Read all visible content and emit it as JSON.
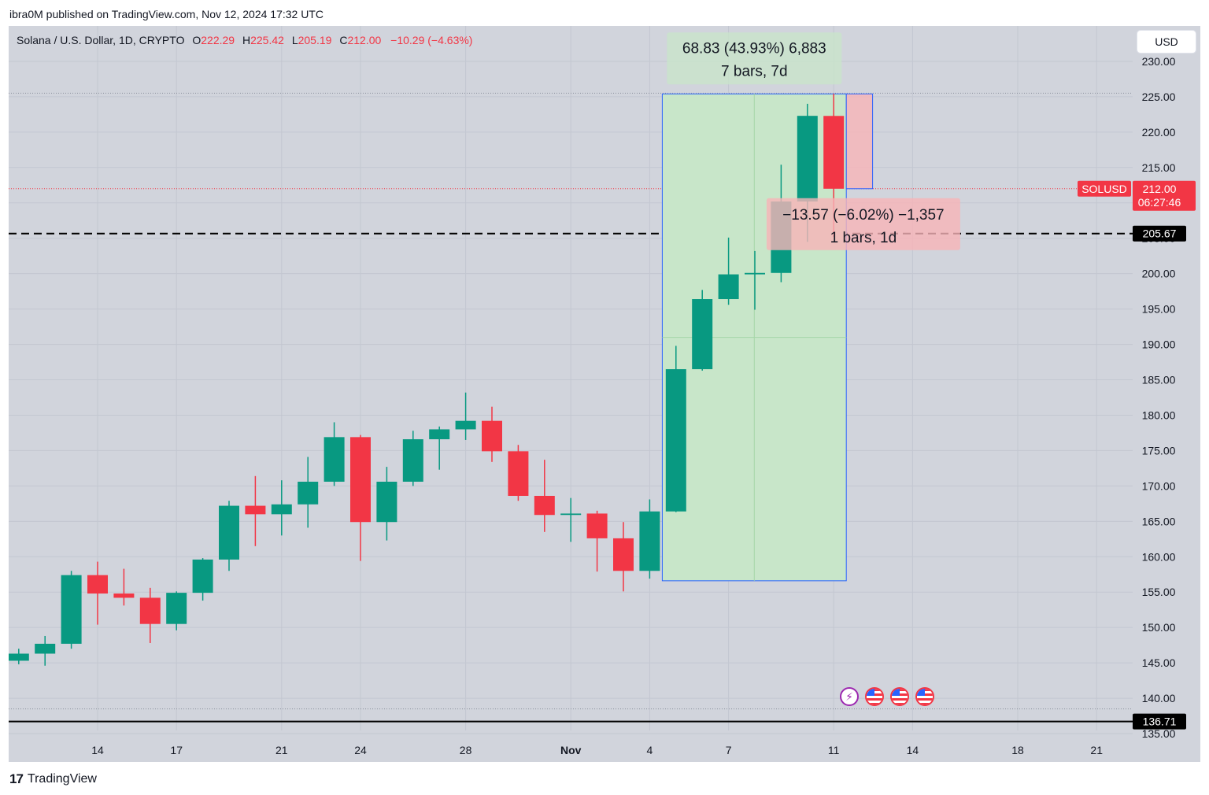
{
  "attribution": "ibra0M published on TradingView.com, Nov 12, 2024 17:32 UTC",
  "legend": {
    "symbol": "Solana / U.S. Dollar, 1D, CRYPTO",
    "o_label": "O",
    "o_value": "222.29",
    "h_label": "H",
    "h_value": "225.42",
    "l_label": "L",
    "l_value": "205.19",
    "c_label": "C",
    "c_value": "212.00",
    "change": "−10.29 (−4.63%)"
  },
  "currency_button": "USD",
  "footer": {
    "logo_glyph": "17",
    "brand": "TradingView"
  },
  "event_icons": [
    "lightning-icon",
    "us-flag-icon",
    "us-flag-icon",
    "us-flag-icon"
  ],
  "chart_data": {
    "type": "candlestick",
    "title": "Solana / U.S. Dollar, 1D, CRYPTO",
    "ylim": [
      131,
      235
    ],
    "y_ticks": [
      "230.00",
      "225.00",
      "220.00",
      "215.00",
      "210.00",
      "205.00",
      "200.00",
      "195.00",
      "190.00",
      "185.00",
      "180.00",
      "175.00",
      "170.00",
      "165.00",
      "160.00",
      "155.00",
      "150.00",
      "145.00",
      "140.00",
      "135.00"
    ],
    "x_ticks": [
      {
        "label": "14",
        "date": "2024-10-14"
      },
      {
        "label": "17",
        "date": "2024-10-17"
      },
      {
        "label": "21",
        "date": "2024-10-21"
      },
      {
        "label": "24",
        "date": "2024-10-24"
      },
      {
        "label": "28",
        "date": "2024-10-28"
      },
      {
        "label": "Nov",
        "date": "2024-11-01"
      },
      {
        "label": "4",
        "date": "2024-11-04"
      },
      {
        "label": "7",
        "date": "2024-11-07"
      },
      {
        "label": "11",
        "date": "2024-11-11"
      },
      {
        "label": "14",
        "date": "2024-11-14"
      },
      {
        "label": "18",
        "date": "2024-11-18"
      },
      {
        "label": "21",
        "date": "2024-11-21"
      }
    ],
    "candles": [
      {
        "date": "2024-10-10",
        "o": 138.8,
        "h": 146.3,
        "l": 138.4,
        "c": 145.3
      },
      {
        "date": "2024-10-11",
        "o": 145.3,
        "h": 147.0,
        "l": 144.8,
        "c": 146.3
      },
      {
        "date": "2024-10-12",
        "o": 146.3,
        "h": 148.8,
        "l": 144.6,
        "c": 147.7
      },
      {
        "date": "2024-10-13",
        "o": 147.7,
        "h": 158.0,
        "l": 147.0,
        "c": 157.4
      },
      {
        "date": "2024-10-14",
        "o": 157.4,
        "h": 159.3,
        "l": 150.4,
        "c": 154.8
      },
      {
        "date": "2024-10-15",
        "o": 154.8,
        "h": 158.3,
        "l": 153.1,
        "c": 154.2
      },
      {
        "date": "2024-10-16",
        "o": 154.2,
        "h": 155.6,
        "l": 147.8,
        "c": 150.5
      },
      {
        "date": "2024-10-17",
        "o": 150.5,
        "h": 155.1,
        "l": 149.6,
        "c": 154.9
      },
      {
        "date": "2024-10-18",
        "o": 154.9,
        "h": 159.8,
        "l": 153.8,
        "c": 159.6
      },
      {
        "date": "2024-10-19",
        "o": 159.6,
        "h": 167.9,
        "l": 158.0,
        "c": 167.2
      },
      {
        "date": "2024-10-20",
        "o": 167.2,
        "h": 171.4,
        "l": 161.5,
        "c": 166.0
      },
      {
        "date": "2024-10-21",
        "o": 166.0,
        "h": 170.8,
        "l": 163.0,
        "c": 167.4
      },
      {
        "date": "2024-10-22",
        "o": 167.4,
        "h": 174.1,
        "l": 164.1,
        "c": 170.6
      },
      {
        "date": "2024-10-23",
        "o": 170.6,
        "h": 179.0,
        "l": 170.0,
        "c": 176.9
      },
      {
        "date": "2024-10-24",
        "o": 176.9,
        "h": 177.2,
        "l": 159.4,
        "c": 164.9
      },
      {
        "date": "2024-10-25",
        "o": 164.9,
        "h": 172.7,
        "l": 162.3,
        "c": 170.6
      },
      {
        "date": "2024-10-26",
        "o": 170.6,
        "h": 177.8,
        "l": 170.0,
        "c": 176.6
      },
      {
        "date": "2024-10-27",
        "o": 176.6,
        "h": 178.4,
        "l": 172.3,
        "c": 178.0
      },
      {
        "date": "2024-10-28",
        "o": 178.0,
        "h": 183.2,
        "l": 176.5,
        "c": 179.2
      },
      {
        "date": "2024-10-29",
        "o": 179.2,
        "h": 181.2,
        "l": 173.4,
        "c": 174.9
      },
      {
        "date": "2024-10-30",
        "o": 174.9,
        "h": 175.8,
        "l": 167.9,
        "c": 168.6
      },
      {
        "date": "2024-10-31",
        "o": 168.6,
        "h": 173.7,
        "l": 163.5,
        "c": 165.9
      },
      {
        "date": "2024-11-01",
        "o": 165.9,
        "h": 168.3,
        "l": 162.1,
        "c": 166.1
      },
      {
        "date": "2024-11-02",
        "o": 166.1,
        "h": 166.5,
        "l": 157.9,
        "c": 162.6
      },
      {
        "date": "2024-11-03",
        "o": 162.6,
        "h": 164.9,
        "l": 155.1,
        "c": 158.0
      },
      {
        "date": "2024-11-04",
        "o": 158.0,
        "h": 168.1,
        "l": 156.9,
        "c": 166.4
      },
      {
        "date": "2024-11-05",
        "o": 166.4,
        "h": 189.8,
        "l": 166.3,
        "c": 186.5
      },
      {
        "date": "2024-11-06",
        "o": 186.5,
        "h": 197.7,
        "l": 186.3,
        "c": 196.4
      },
      {
        "date": "2024-11-07",
        "o": 196.4,
        "h": 205.1,
        "l": 195.6,
        "c": 199.9
      },
      {
        "date": "2024-11-08",
        "o": 199.9,
        "h": 203.2,
        "l": 194.9,
        "c": 200.1
      },
      {
        "date": "2024-11-09",
        "o": 200.1,
        "h": 215.4,
        "l": 198.8,
        "c": 210.2
      },
      {
        "date": "2024-11-10",
        "o": 210.2,
        "h": 224.0,
        "l": 204.5,
        "c": 222.3
      },
      {
        "date": "2024-11-11",
        "o": 222.29,
        "h": 225.42,
        "l": 205.19,
        "c": 212.0
      }
    ],
    "price_lines": [
      {
        "value": 205.67,
        "label": "205.67",
        "style": "dashed"
      },
      {
        "value": 136.71,
        "label": "136.71",
        "style": "solid"
      }
    ],
    "dotted_levels": [
      225.5,
      138.5
    ],
    "current_price": {
      "symbol": "SOLUSD",
      "value": 212.0,
      "label": "212.00",
      "countdown": "06:27:46"
    },
    "measure_up": {
      "from_date": "2024-11-04",
      "to_date": "2024-11-11",
      "low": 156.6,
      "high": 225.4,
      "line1": "68.83 (43.93%) 6,883",
      "line2": "7 bars, 7d"
    },
    "measure_down": {
      "from_date": "2024-11-11",
      "to_date": "2024-11-12",
      "low": 212.0,
      "high": 225.4,
      "line1": "−13.57 (−6.02%) −1,357",
      "line2": "1 bars, 1d"
    },
    "colors": {
      "up": "#089981",
      "down": "#f23645",
      "background": "#d1d4dc",
      "measure_up_fill": "#c8e6c9",
      "measure_down_fill": "#f7b4b8",
      "measure_border": "#2962ff"
    }
  }
}
